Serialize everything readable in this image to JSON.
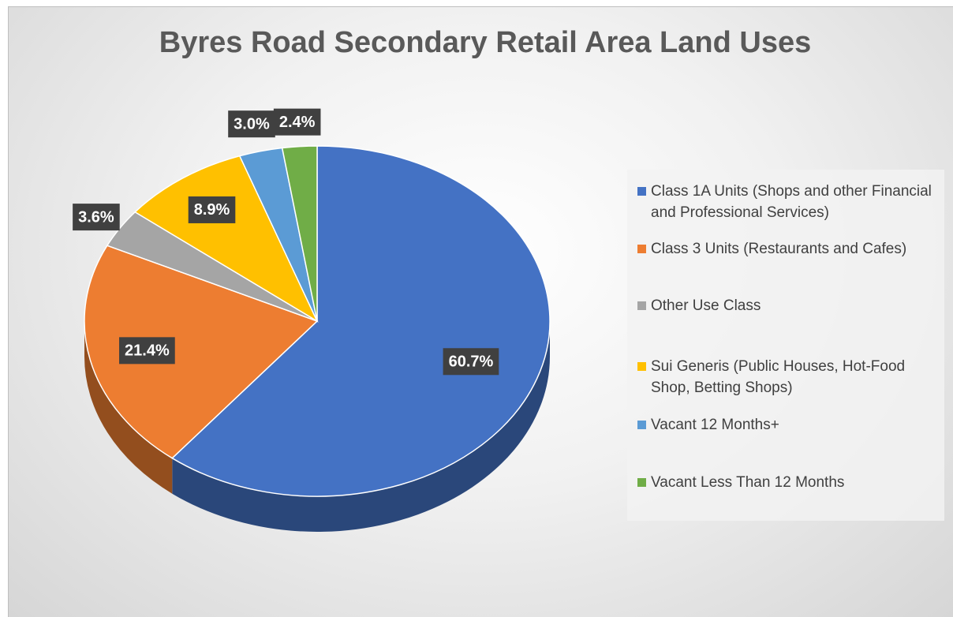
{
  "chart_data": {
    "type": "pie",
    "title": "Byres Road Secondary Retail Area Land Uses",
    "categories": [
      "Class 1A Units (Shops and other Financial and Professional Services)",
      "Class 3 Units (Restaurants and Cafes)",
      "Other Use Class",
      "Sui Generis (Public Houses, Hot-Food Shop, Betting Shops)",
      "Vacant 12 Months+",
      "Vacant Less Than 12 Months"
    ],
    "values": [
      60.7,
      21.4,
      3.6,
      8.9,
      3.0,
      2.4
    ],
    "value_labels": [
      "60.7%",
      "21.4%",
      "3.6%",
      "8.9%",
      "3.0%",
      "2.4%"
    ],
    "colors": [
      "#4472c4",
      "#ed7d31",
      "#a5a5a5",
      "#ffc000",
      "#5b9bd5",
      "#70ad47"
    ],
    "legend": "right"
  }
}
